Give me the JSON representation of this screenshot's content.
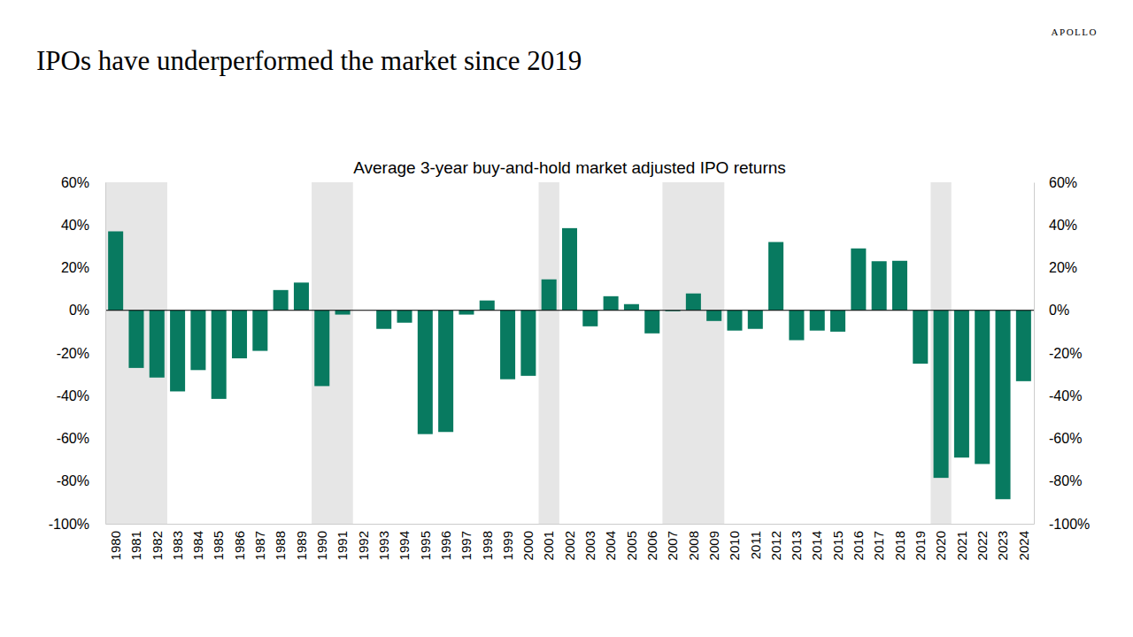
{
  "chart_data": {
    "type": "bar",
    "title": "IPOs have underperformed the market since 2019",
    "subtitle": "Average 3-year buy-and-hold market adjusted IPO returns",
    "source": "APOLLO",
    "categories": [
      "1980",
      "1981",
      "1982",
      "1983",
      "1984",
      "1985",
      "1986",
      "1987",
      "1988",
      "1989",
      "1990",
      "1991",
      "1992",
      "1993",
      "1994",
      "1995",
      "1996",
      "1997",
      "1998",
      "1999",
      "2000",
      "2001",
      "2002",
      "2003",
      "2004",
      "2005",
      "2006",
      "2007",
      "2008",
      "2009",
      "2010",
      "2011",
      "2012",
      "2013",
      "2014",
      "2015",
      "2016",
      "2017",
      "2018",
      "2019",
      "2020",
      "2021",
      "2022",
      "2023",
      "2024"
    ],
    "values": [
      37,
      -27,
      -31.5,
      -38,
      -28,
      -41.5,
      -22.5,
      -19,
      9.5,
      13,
      -35.5,
      -2,
      0,
      -8.7,
      -5.8,
      -58,
      -57,
      -2,
      4.6,
      -32.3,
      -30.7,
      14.5,
      38.5,
      -7.5,
      6.6,
      2.9,
      -10.8,
      -0.4,
      7.9,
      -5,
      -9.5,
      -8.7,
      32,
      -14,
      -9.5,
      -10,
      29,
      23,
      23.2,
      -25,
      -78.5,
      -69,
      -72,
      -88.5,
      -33.2
    ],
    "color": "#087a60",
    "ylim": [
      -100,
      60
    ],
    "yticks": [
      {
        "value": -100,
        "label": "-100%"
      },
      {
        "value": -80,
        "label": "-80%"
      },
      {
        "value": -60,
        "label": "-60%"
      },
      {
        "value": -40,
        "label": "-40%"
      },
      {
        "value": -20,
        "label": "-20%"
      },
      {
        "value": 0,
        "label": "0%"
      },
      {
        "value": 20,
        "label": "20%"
      },
      {
        "value": 40,
        "label": "40%"
      },
      {
        "value": 60,
        "label": "60%"
      }
    ],
    "y2lim": [
      -100,
      60
    ],
    "y2ticks": [
      {
        "value": -100,
        "label": "-100%"
      },
      {
        "value": -80,
        "label": "-80%"
      },
      {
        "value": -60,
        "label": "-60%"
      },
      {
        "value": -40,
        "label": "-40%"
      },
      {
        "value": -20,
        "label": "-20%"
      },
      {
        "value": 0,
        "label": "0%"
      },
      {
        "value": 20,
        "label": "20%"
      },
      {
        "value": 40,
        "label": "40%"
      },
      {
        "value": 60,
        "label": "60%"
      }
    ],
    "shaded_ranges": [
      [
        "1980",
        "1982"
      ],
      [
        "1990",
        "1991"
      ],
      [
        "2001",
        "2001"
      ],
      [
        "2007",
        "2009"
      ],
      [
        "2020",
        "2020"
      ]
    ],
    "grid": false,
    "data_labels": false
  }
}
